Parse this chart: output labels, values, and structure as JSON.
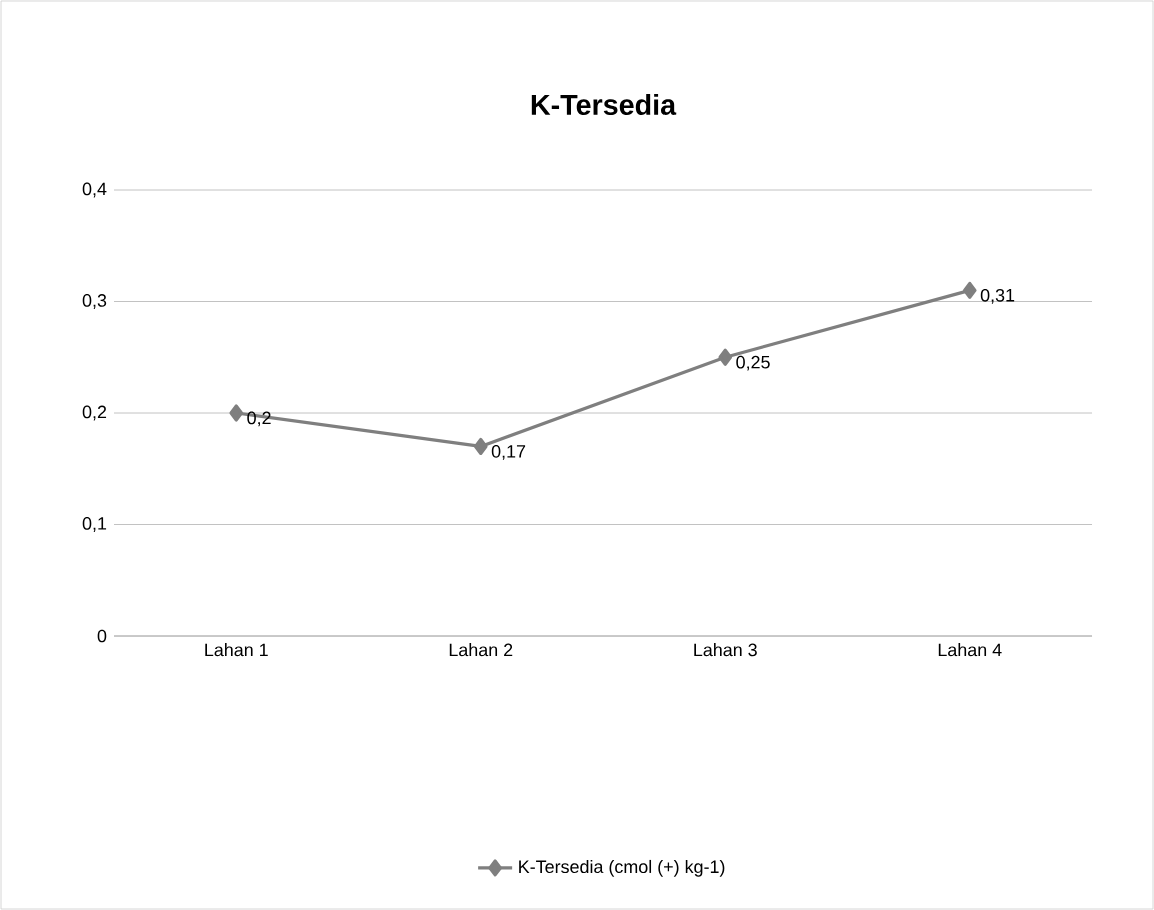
{
  "chart_data": {
    "type": "line",
    "title": "K-Tersedia",
    "categories": [
      "Lahan 1",
      "Lahan 2",
      "Lahan 3",
      "Lahan 4"
    ],
    "series": [
      {
        "name": "K-Tersedia (cmol (+) kg-1)",
        "color": "#7f7f7f",
        "values": [
          0.2,
          0.17,
          0.25,
          0.31
        ],
        "value_labels": [
          "0,2",
          "0,17",
          "0,25",
          "0,31"
        ]
      }
    ],
    "ylim": [
      0,
      0.4
    ],
    "yticks": [
      {
        "value": 0,
        "label": "0"
      },
      {
        "value": 0.1,
        "label": "0,1"
      },
      {
        "value": 0.2,
        "label": "0,2"
      },
      {
        "value": 0.3,
        "label": "0,3"
      },
      {
        "value": 0.4,
        "label": "0,4"
      }
    ],
    "grid": "y",
    "legend": "bottom",
    "marker": "diamond"
  }
}
